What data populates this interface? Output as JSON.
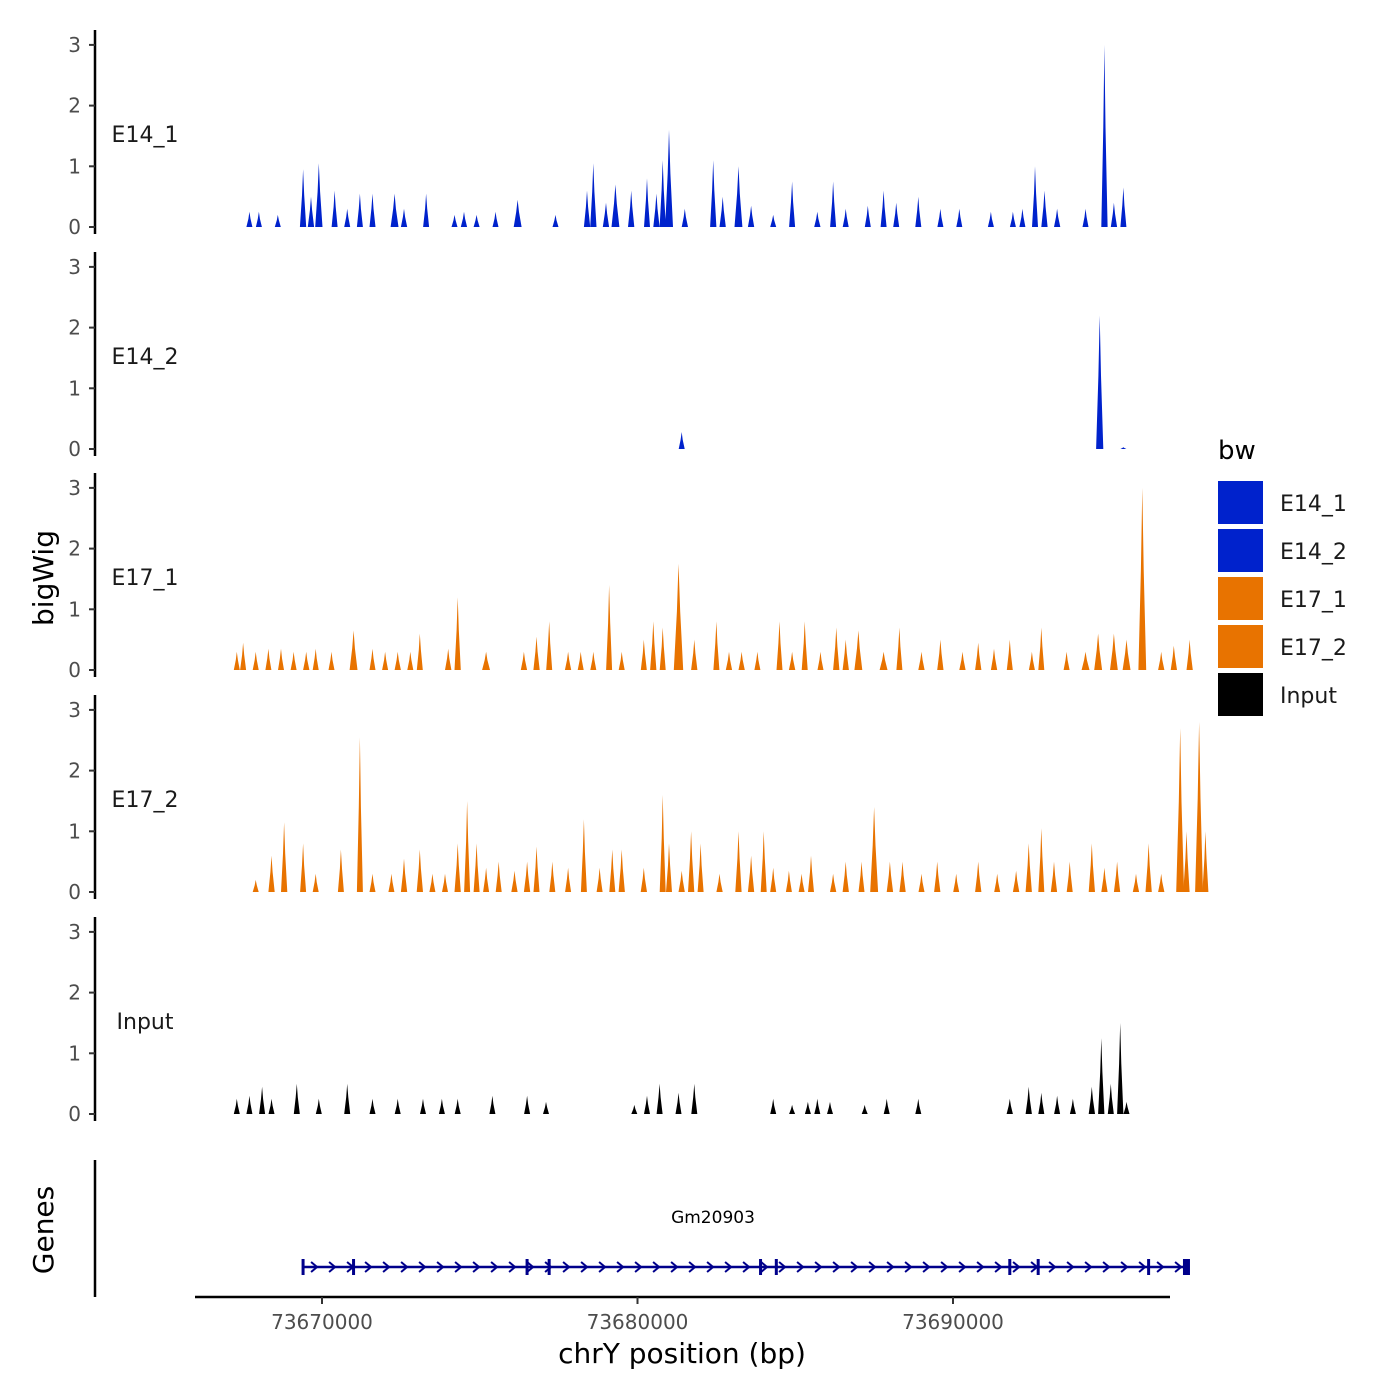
{
  "chart_data": {
    "type": "area",
    "description_note": "Genome browser style coverage tracks (bigWig) with gene annotation",
    "ylabel": "bigWig",
    "xlabel": "chrY position (bp)",
    "gene_panel_label": "Genes",
    "ylim": [
      0,
      3.1
    ],
    "yticks": [
      "0",
      "1",
      "2",
      "3"
    ],
    "xlim": [
      73666000,
      73697500
    ],
    "xticks": [
      73670000,
      73680000,
      73690000
    ],
    "xtick_labels": [
      "73670000",
      "73680000",
      "73690000"
    ],
    "legend": {
      "title": "bw",
      "entries": [
        {
          "label": "E14_1",
          "color": "#0022CC"
        },
        {
          "label": "E14_2",
          "color": "#0022CC"
        },
        {
          "label": "E17_1",
          "color": "#E87300"
        },
        {
          "label": "E17_2",
          "color": "#E87300"
        },
        {
          "label": "Input",
          "color": "#000000"
        }
      ]
    },
    "tracks": [
      {
        "name": "E14_1",
        "color": "#0022CC",
        "peaks": [
          [
            73667700,
            0.25,
            100
          ],
          [
            73668000,
            0.25,
            100
          ],
          [
            73668600,
            0.2,
            80
          ],
          [
            73669400,
            0.95,
            200
          ],
          [
            73669650,
            0.5,
            200
          ],
          [
            73669900,
            1.05,
            230
          ],
          [
            73670400,
            0.6,
            150
          ],
          [
            73670800,
            0.3,
            120
          ],
          [
            73671200,
            0.55,
            150
          ],
          [
            73671600,
            0.55,
            130
          ],
          [
            73672300,
            0.55,
            250
          ],
          [
            73672600,
            0.3,
            200
          ],
          [
            73673300,
            0.55,
            150
          ],
          [
            73674200,
            0.2,
            150
          ],
          [
            73674500,
            0.25,
            200
          ],
          [
            73674900,
            0.2,
            150
          ],
          [
            73675500,
            0.25,
            150
          ],
          [
            73676200,
            0.45,
            250
          ],
          [
            73677400,
            0.2,
            100
          ],
          [
            73678400,
            0.6,
            200
          ],
          [
            73678600,
            1.05,
            200
          ],
          [
            73679000,
            0.4,
            200
          ],
          [
            73679300,
            0.7,
            250
          ],
          [
            73679800,
            0.6,
            200
          ],
          [
            73680300,
            0.8,
            150
          ],
          [
            73680600,
            0.55,
            200
          ],
          [
            73680800,
            1.1,
            200
          ],
          [
            73681000,
            1.6,
            250
          ],
          [
            73681500,
            0.3,
            200
          ],
          [
            73682400,
            1.1,
            200
          ],
          [
            73682700,
            0.5,
            200
          ],
          [
            73683200,
            1.0,
            250
          ],
          [
            73683600,
            0.35,
            200
          ],
          [
            73684300,
            0.2,
            150
          ],
          [
            73684900,
            0.75,
            120
          ],
          [
            73685700,
            0.25,
            200
          ],
          [
            73686200,
            0.75,
            150
          ],
          [
            73686600,
            0.3,
            150
          ],
          [
            73687300,
            0.35,
            120
          ],
          [
            73687800,
            0.6,
            150
          ],
          [
            73688200,
            0.4,
            150
          ],
          [
            73688900,
            0.5,
            150
          ],
          [
            73689600,
            0.3,
            150
          ],
          [
            73690200,
            0.3,
            150
          ],
          [
            73691200,
            0.25,
            130
          ],
          [
            73691900,
            0.25,
            130
          ],
          [
            73692200,
            0.3,
            130
          ],
          [
            73692600,
            1.0,
            150
          ],
          [
            73692900,
            0.6,
            200
          ],
          [
            73693300,
            0.3,
            200
          ],
          [
            73694200,
            0.3,
            150
          ],
          [
            73694800,
            3.0,
            200
          ],
          [
            73695100,
            0.4,
            200
          ],
          [
            73695400,
            0.65,
            100
          ]
        ]
      },
      {
        "name": "E14_2",
        "color": "#0022CC",
        "peaks": [
          [
            73681400,
            0.28,
            100
          ],
          [
            73694650,
            2.2,
            230
          ],
          [
            73695400,
            0.03,
            100
          ]
        ]
      },
      {
        "name": "E17_1",
        "color": "#E87300",
        "peaks": [
          [
            73667300,
            0.3,
            150
          ],
          [
            73667500,
            0.45,
            150
          ],
          [
            73667900,
            0.3,
            150
          ],
          [
            73668300,
            0.35,
            150
          ],
          [
            73668700,
            0.35,
            150
          ],
          [
            73669100,
            0.3,
            150
          ],
          [
            73669500,
            0.3,
            200
          ],
          [
            73669800,
            0.35,
            150
          ],
          [
            73670300,
            0.3,
            150
          ],
          [
            73671000,
            0.65,
            250
          ],
          [
            73671600,
            0.35,
            150
          ],
          [
            73672000,
            0.3,
            150
          ],
          [
            73672400,
            0.3,
            200
          ],
          [
            73672800,
            0.3,
            150
          ],
          [
            73673100,
            0.6,
            150
          ],
          [
            73674000,
            0.35,
            200
          ],
          [
            73674300,
            1.2,
            200
          ],
          [
            73675200,
            0.3,
            250
          ],
          [
            73676400,
            0.3,
            200
          ],
          [
            73676800,
            0.55,
            200
          ],
          [
            73677200,
            0.8,
            150
          ],
          [
            73677800,
            0.3,
            200
          ],
          [
            73678200,
            0.3,
            150
          ],
          [
            73678600,
            0.3,
            150
          ],
          [
            73679100,
            1.4,
            150
          ],
          [
            73679500,
            0.3,
            150
          ],
          [
            73680200,
            0.5,
            150
          ],
          [
            73680500,
            0.8,
            200
          ],
          [
            73680800,
            0.7,
            150
          ],
          [
            73681300,
            1.75,
            300
          ],
          [
            73681800,
            0.5,
            200
          ],
          [
            73682500,
            0.8,
            150
          ],
          [
            73682900,
            0.3,
            200
          ],
          [
            73683300,
            0.3,
            200
          ],
          [
            73683800,
            0.3,
            150
          ],
          [
            73684500,
            0.8,
            150
          ],
          [
            73684900,
            0.3,
            200
          ],
          [
            73685300,
            0.8,
            150
          ],
          [
            73685800,
            0.3,
            150
          ],
          [
            73686300,
            0.7,
            200
          ],
          [
            73686600,
            0.5,
            200
          ],
          [
            73687000,
            0.65,
            250
          ],
          [
            73687800,
            0.3,
            250
          ],
          [
            73688300,
            0.7,
            150
          ],
          [
            73689000,
            0.3,
            200
          ],
          [
            73689600,
            0.5,
            200
          ],
          [
            73690300,
            0.3,
            200
          ],
          [
            73690800,
            0.45,
            200
          ],
          [
            73691300,
            0.35,
            200
          ],
          [
            73691800,
            0.5,
            150
          ],
          [
            73692500,
            0.3,
            150
          ],
          [
            73692800,
            0.7,
            150
          ],
          [
            73693600,
            0.3,
            150
          ],
          [
            73694200,
            0.3,
            250
          ],
          [
            73694600,
            0.6,
            250
          ],
          [
            73695100,
            0.6,
            250
          ],
          [
            73695500,
            0.5,
            250
          ],
          [
            73696000,
            3.0,
            250
          ],
          [
            73696600,
            0.3,
            200
          ],
          [
            73697000,
            0.4,
            200
          ],
          [
            73697500,
            0.5,
            200
          ]
        ]
      },
      {
        "name": "E17_2",
        "color": "#E87300",
        "peaks": [
          [
            73667900,
            0.2,
            100
          ],
          [
            73668400,
            0.6,
            200
          ],
          [
            73668800,
            1.15,
            200
          ],
          [
            73669400,
            0.8,
            150
          ],
          [
            73669800,
            0.3,
            150
          ],
          [
            73670600,
            0.7,
            150
          ],
          [
            73671200,
            2.55,
            100
          ],
          [
            73671600,
            0.3,
            100
          ],
          [
            73672200,
            0.3,
            150
          ],
          [
            73672600,
            0.55,
            200
          ],
          [
            73673100,
            0.7,
            200
          ],
          [
            73673500,
            0.3,
            150
          ],
          [
            73673900,
            0.3,
            150
          ],
          [
            73674300,
            0.8,
            200
          ],
          [
            73674600,
            1.5,
            150
          ],
          [
            73674900,
            0.8,
            150
          ],
          [
            73675200,
            0.4,
            150
          ],
          [
            73675600,
            0.5,
            150
          ],
          [
            73676100,
            0.35,
            200
          ],
          [
            73676500,
            0.5,
            200
          ],
          [
            73676800,
            0.75,
            150
          ],
          [
            73677300,
            0.5,
            150
          ],
          [
            73677800,
            0.4,
            150
          ],
          [
            73678300,
            1.2,
            150
          ],
          [
            73678800,
            0.4,
            150
          ],
          [
            73679200,
            0.7,
            150
          ],
          [
            73679500,
            0.7,
            200
          ],
          [
            73680200,
            0.4,
            200
          ],
          [
            73680800,
            1.6,
            150
          ],
          [
            73681000,
            0.8,
            150
          ],
          [
            73681400,
            0.35,
            200
          ],
          [
            73681700,
            1.0,
            200
          ],
          [
            73682000,
            0.8,
            150
          ],
          [
            73682600,
            0.3,
            200
          ],
          [
            73683200,
            1.0,
            200
          ],
          [
            73683600,
            0.6,
            200
          ],
          [
            73684000,
            1.0,
            150
          ],
          [
            73684300,
            0.4,
            150
          ],
          [
            73684800,
            0.35,
            150
          ],
          [
            73685200,
            0.3,
            150
          ],
          [
            73685500,
            0.6,
            150
          ],
          [
            73686200,
            0.3,
            200
          ],
          [
            73686600,
            0.5,
            200
          ],
          [
            73687100,
            0.5,
            150
          ],
          [
            73687500,
            1.4,
            250
          ],
          [
            73688000,
            0.5,
            200
          ],
          [
            73688400,
            0.5,
            200
          ],
          [
            73689000,
            0.3,
            150
          ],
          [
            73689500,
            0.5,
            200
          ],
          [
            73690100,
            0.3,
            150
          ],
          [
            73690800,
            0.5,
            200
          ],
          [
            73691400,
            0.3,
            150
          ],
          [
            73692000,
            0.35,
            200
          ],
          [
            73692400,
            0.8,
            200
          ],
          [
            73692800,
            1.05,
            150
          ],
          [
            73693200,
            0.5,
            200
          ],
          [
            73693700,
            0.5,
            150
          ],
          [
            73694400,
            0.8,
            200
          ],
          [
            73694800,
            0.4,
            200
          ],
          [
            73695200,
            0.5,
            200
          ],
          [
            73695800,
            0.3,
            200
          ],
          [
            73696200,
            0.8,
            200
          ],
          [
            73696600,
            0.3,
            200
          ],
          [
            73697200,
            2.7,
            250
          ],
          [
            73697400,
            1.0,
            200
          ],
          [
            73697800,
            2.8,
            250
          ],
          [
            73698000,
            1.0,
            150
          ]
        ]
      },
      {
        "name": "Input",
        "color": "#000000",
        "peaks": [
          [
            73667300,
            0.25,
            100
          ],
          [
            73667700,
            0.3,
            150
          ],
          [
            73668100,
            0.45,
            150
          ],
          [
            73668400,
            0.25,
            100
          ],
          [
            73669200,
            0.5,
            150
          ],
          [
            73669900,
            0.25,
            150
          ],
          [
            73670800,
            0.5,
            150
          ],
          [
            73671600,
            0.25,
            150
          ],
          [
            73672400,
            0.25,
            150
          ],
          [
            73673200,
            0.25,
            150
          ],
          [
            73673800,
            0.25,
            150
          ],
          [
            73674300,
            0.25,
            150
          ],
          [
            73675400,
            0.3,
            150
          ],
          [
            73676500,
            0.3,
            150
          ],
          [
            73677100,
            0.2,
            100
          ],
          [
            73679900,
            0.15,
            150
          ],
          [
            73680300,
            0.3,
            150
          ],
          [
            73680700,
            0.5,
            150
          ],
          [
            73681300,
            0.35,
            150
          ],
          [
            73681800,
            0.5,
            150
          ],
          [
            73684300,
            0.25,
            100
          ],
          [
            73684900,
            0.15,
            100
          ],
          [
            73685400,
            0.2,
            150
          ],
          [
            73685700,
            0.25,
            150
          ],
          [
            73686100,
            0.2,
            150
          ],
          [
            73687200,
            0.15,
            100
          ],
          [
            73687900,
            0.25,
            150
          ],
          [
            73688900,
            0.25,
            150
          ],
          [
            73691800,
            0.25,
            200
          ],
          [
            73692400,
            0.45,
            200
          ],
          [
            73692800,
            0.35,
            150
          ],
          [
            73693300,
            0.3,
            150
          ],
          [
            73693800,
            0.25,
            150
          ],
          [
            73694400,
            0.45,
            200
          ],
          [
            73694700,
            1.25,
            200
          ],
          [
            73695000,
            0.5,
            150
          ],
          [
            73695300,
            1.5,
            200
          ],
          [
            73695500,
            0.2,
            100
          ]
        ]
      }
    ],
    "gene": {
      "name": "Gm20903",
      "start": 73669400,
      "end": 73697500,
      "strand": "+",
      "color": "#00008B",
      "exons": [
        73669400,
        73671000,
        73676500,
        73677200,
        73683900,
        73684400,
        73691800,
        73692700,
        73696200,
        73697400
      ]
    }
  }
}
